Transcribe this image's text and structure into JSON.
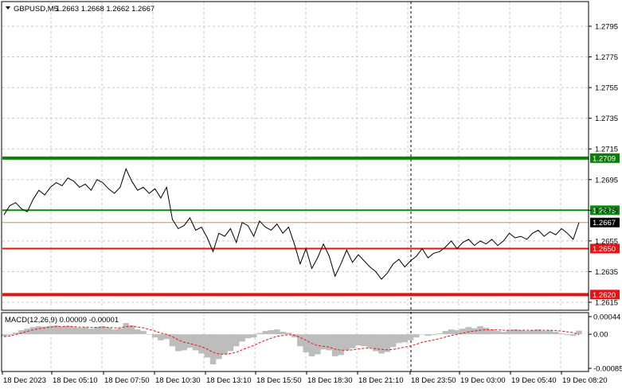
{
  "header": {
    "symbol": "GBPUSD,M5",
    "ohlc": "1.2663 1.2668 1.2662 1.2667"
  },
  "macd": {
    "label": "MACD(12,26,9) 0.00009 -0.00001",
    "axis_labels": [
      "0.00044",
      "0.00",
      "-0.00085"
    ]
  },
  "price_axis": {
    "ticks": [
      "1.2795",
      "1.2775",
      "1.2755",
      "1.2735",
      "1.2715",
      "1.2695",
      "1.2675",
      "1.2655",
      "1.2635",
      "1.2615"
    ]
  },
  "levels": [
    {
      "price": 1.2709,
      "label": "1.2709",
      "color": "#0a7d0a",
      "thick": true
    },
    {
      "price": 1.2675,
      "label": "1.2675",
      "color": "#0a8a0a",
      "thick": false
    },
    {
      "price": 1.2667,
      "label": "1.2667",
      "color": "#e08850",
      "thick": false,
      "current": true
    },
    {
      "price": 1.265,
      "label": "1.2650",
      "color": "#e21414",
      "thick": false
    },
    {
      "price": 1.262,
      "label": "1.2620",
      "color": "#e21414",
      "thick": true
    }
  ],
  "time_axis": {
    "labels": [
      "18 Dec 2023",
      "18 Dec 05:10",
      "18 Dec 07:50",
      "18 Dec 10:30",
      "18 Dec 13:10",
      "18 Dec 15:50",
      "18 Dec 18:30",
      "18 Dec 21:10",
      "18 Dec 23:50",
      "19 Dec 03:00",
      "19 Dec 05:40",
      "19 Dec 08:20"
    ]
  },
  "colors": {
    "price_line": "#000000",
    "macd_hist": "#bdbdbd",
    "macd_signal": "#e21414",
    "grid": "#c8c8c8"
  },
  "chart_data": {
    "type": "line",
    "price_range": [
      1.261,
      1.2805
    ],
    "prices": [
      1.2672,
      1.2678,
      1.268,
      1.2676,
      1.2674,
      1.2682,
      1.2688,
      1.2685,
      1.269,
      1.2693,
      1.2691,
      1.2696,
      1.2694,
      1.269,
      1.2692,
      1.2688,
      1.2695,
      1.2693,
      1.2689,
      1.2686,
      1.269,
      1.2702,
      1.2694,
      1.2688,
      1.269,
      1.2686,
      1.2689,
      1.2683,
      1.269,
      1.2669,
      1.2663,
      1.2665,
      1.267,
      1.2662,
      1.2664,
      1.2657,
      1.2648,
      1.266,
      1.2658,
      1.2663,
      1.2654,
      1.2667,
      1.2665,
      1.2658,
      1.2668,
      1.2664,
      1.2662,
      1.2666,
      1.266,
      1.2664,
      1.2653,
      1.264,
      1.265,
      1.2637,
      1.2644,
      1.2653,
      1.2645,
      1.2632,
      1.264,
      1.2649,
      1.2641,
      1.2646,
      1.2642,
      1.2638,
      1.2635,
      1.263,
      1.2634,
      1.264,
      1.2643,
      1.2638,
      1.2642,
      1.2645,
      1.265,
      1.2644,
      1.2647,
      1.2648,
      1.2651,
      1.2655,
      1.265,
      1.2654,
      1.2656,
      1.2652,
      1.2655,
      1.2653,
      1.2656,
      1.2652,
      1.2655,
      1.266,
      1.2657,
      1.2658,
      1.2656,
      1.266,
      1.2662,
      1.2658,
      1.2661,
      1.2659,
      1.2663,
      1.266,
      1.2656,
      1.2667
    ],
    "macd_range": [
      -0.00085,
      0.00044
    ],
    "macd_hist": [
      -5e-05,
      -2e-05,
      4e-05,
      0.0001,
      0.00014,
      0.00018,
      0.0002,
      0.00019,
      0.00021,
      0.00022,
      0.00019,
      0.00021,
      0.00018,
      0.00016,
      0.00017,
      0.00014,
      0.00018,
      0.0002,
      0.00016,
      0.00012,
      0.00015,
      0.00028,
      0.00022,
      0.00012,
      8e-05,
      0.0,
      -8e-05,
      -0.00015,
      -0.00012,
      -0.0003,
      -0.00042,
      -0.0004,
      -0.00034,
      -0.0004,
      -0.00048,
      -0.00058,
      -0.00075,
      -0.00062,
      -0.0005,
      -0.00042,
      -0.0003,
      -0.00018,
      -0.0001,
      -8e-05,
      3e-05,
      8e-05,
      0.0001,
      0.00012,
      6e-05,
      4e-05,
      -8e-05,
      -0.0003,
      -0.00045,
      -0.00055,
      -0.0005,
      -0.00038,
      -0.0004,
      -0.00055,
      -0.00052,
      -0.0004,
      -0.00035,
      -0.00028,
      -0.0003,
      -0.00034,
      -0.00042,
      -0.00048,
      -0.00044,
      -0.00032,
      -0.00022,
      -0.0002,
      -0.00015,
      -8e-05,
      0.0,
      -4e-05,
      -2e-05,
      2e-05,
      8e-05,
      0.00012,
      0.0001,
      0.00014,
      0.00018,
      0.00015,
      0.0002,
      0.00016,
      0.00012,
      8e-05,
      6e-05,
      0.0001,
      0.00012,
      0.0001,
      8e-05,
      0.0001,
      0.00012,
      8e-05,
      0.0001,
      6e-05,
      2e-05,
      -2e-05,
      -4e-05,
      9e-05
    ],
    "macd_signal": [
      -6e-05,
      -4e-05,
      -1e-05,
      3e-05,
      7e-05,
      0.00011,
      0.00014,
      0.00016,
      0.00018,
      0.00019,
      0.00019,
      0.0002,
      0.00019,
      0.00018,
      0.00018,
      0.00017,
      0.00017,
      0.00018,
      0.00017,
      0.00016,
      0.00016,
      0.00019,
      0.0002,
      0.00018,
      0.00016,
      0.00012,
      8e-05,
      3e-05,
      0.0,
      -6e-05,
      -0.00014,
      -0.0002,
      -0.00023,
      -0.00027,
      -0.00031,
      -0.00037,
      -0.00045,
      -0.00049,
      -0.0005,
      -0.00048,
      -0.00045,
      -0.00039,
      -0.00033,
      -0.00028,
      -0.00021,
      -0.00015,
      -0.0001,
      -5e-05,
      -3e-05,
      -1e-05,
      -2e-05,
      -8e-05,
      -0.00015,
      -0.00023,
      -0.00028,
      -0.0003,
      -0.00032,
      -0.00037,
      -0.0004,
      -0.0004,
      -0.00039,
      -0.00037,
      -0.00035,
      -0.00035,
      -0.00036,
      -0.00038,
      -0.00039,
      -0.00038,
      -0.00035,
      -0.00032,
      -0.00029,
      -0.00025,
      -0.0002,
      -0.00017,
      -0.00014,
      -0.00011,
      -7e-05,
      -3e-05,
      0.0,
      3e-05,
      6e-05,
      8e-05,
      0.0001,
      0.00011,
      0.00011,
      0.00011,
      0.0001,
      0.0001,
      0.0001,
      0.0001,
      0.0001,
      0.0001,
      0.0001,
      0.0001,
      0.0001,
      9e-05,
      8e-05,
      6e-05,
      4e-05,
      -1e-05
    ]
  }
}
